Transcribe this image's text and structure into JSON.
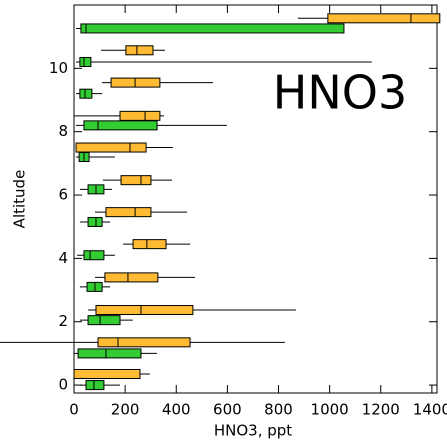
{
  "chart_data": {
    "type": "box",
    "annotation": "HNO3",
    "xlabel": "HNO3, ppt",
    "ylabel": "Altitude",
    "xlim": [
      0,
      1420
    ],
    "ylim": [
      -0.25,
      12
    ],
    "xticks": [
      0,
      200,
      400,
      600,
      800,
      1000,
      1200,
      1400
    ],
    "yticks": [
      0,
      2,
      4,
      6,
      8,
      10
    ],
    "series": [
      {
        "color": "#33cc33",
        "y": [
          0,
          1,
          2.05,
          3.1,
          4.1,
          5.15,
          6.18,
          7.2,
          8.2,
          9.2,
          10.2,
          11.26
        ],
        "min": [
          23,
          0,
          23,
          23,
          12,
          23,
          23,
          8,
          8,
          8,
          8,
          8
        ],
        "q1": [
          47,
          16,
          55,
          51,
          39,
          55,
          55,
          20,
          39,
          23,
          23,
          27
        ],
        "median": [
          78,
          125,
          102,
          82,
          63,
          86,
          86,
          39,
          94,
          43,
          39,
          47
        ],
        "q3": [
          117,
          262,
          180,
          110,
          117,
          110,
          117,
          59,
          325,
          70,
          66,
          1056
        ],
        "max": [
          180,
          325,
          230,
          141,
          160,
          141,
          149,
          160,
          598,
          110,
          1165,
          1056
        ]
      },
      {
        "color": "#ffbb33",
        "y": [
          0.35,
          1.35,
          2.37,
          3.4,
          4.45,
          5.46,
          6.47,
          7.5,
          8.5,
          9.55,
          10.57,
          11.58
        ],
        "min": [
          0,
          -290,
          55,
          82,
          192,
          82,
          113,
          8,
          0,
          110,
          106,
          876
        ],
        "q1": [
          0,
          94,
          86,
          121,
          231,
          125,
          184,
          8,
          180,
          145,
          203,
          993
        ],
        "median": [
          0,
          172,
          262,
          211,
          285,
          239,
          262,
          219,
          278,
          239,
          246,
          1318
        ],
        "q3": [
          258,
          454,
          465,
          328,
          360,
          301,
          301,
          282,
          336,
          336,
          309,
          1431
        ],
        "max": [
          297,
          825,
          868,
          473,
          454,
          442,
          383,
          387,
          352,
          544,
          356,
          1431
        ]
      }
    ]
  }
}
